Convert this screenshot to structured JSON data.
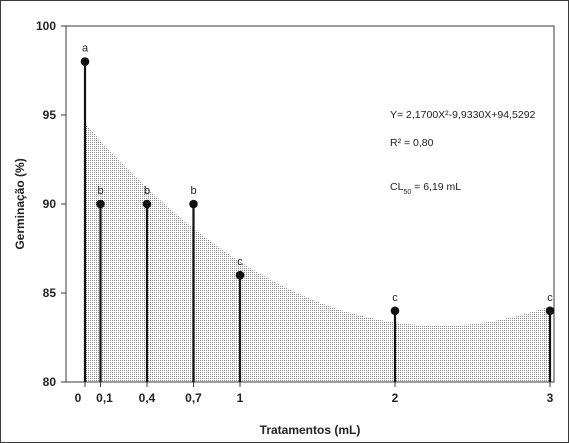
{
  "chart_data": {
    "type": "bar",
    "xlabel": "Tratamentos (mL)",
    "ylabel": "Germinação (%)",
    "xlim": [
      0,
      3
    ],
    "ylim": [
      80,
      100
    ],
    "x_ticks": [
      {
        "value": 0,
        "label": "0"
      },
      {
        "value": 0.1,
        "label": "0,1"
      },
      {
        "value": 0.4,
        "label": "0,4"
      },
      {
        "value": 0.7,
        "label": "0,7"
      },
      {
        "value": 1,
        "label": "1"
      },
      {
        "value": 2,
        "label": "2"
      },
      {
        "value": 3,
        "label": "3"
      }
    ],
    "y_ticks": [
      80,
      85,
      90,
      95,
      100
    ],
    "points": [
      {
        "x": 0,
        "y": 98,
        "letter": "a"
      },
      {
        "x": 0.1,
        "y": 90,
        "letter": "b"
      },
      {
        "x": 0.4,
        "y": 90,
        "letter": "b"
      },
      {
        "x": 0.7,
        "y": 90,
        "letter": "b"
      },
      {
        "x": 1,
        "y": 86,
        "letter": "c"
      },
      {
        "x": 2,
        "y": 84,
        "letter": "c"
      },
      {
        "x": 3,
        "y": 84,
        "letter": "c"
      }
    ],
    "fit": {
      "a": 2.17,
      "b": -9.933,
      "c": 94.5292,
      "style": "dotted-fill"
    },
    "annotations": {
      "equation": "Y= 2,1700X²-9,9330X+94,5292",
      "r2": "R² = 0,80",
      "cl50_prefix": "CL",
      "cl50_sub": "50",
      "cl50_suffix": " = 6,19 mL"
    },
    "colors": {
      "frame": "#3a3a3a",
      "stem": "#111111",
      "marker": "#111111",
      "fill_dots": "#8a8a8a"
    },
    "grid": false,
    "legend": "none"
  }
}
